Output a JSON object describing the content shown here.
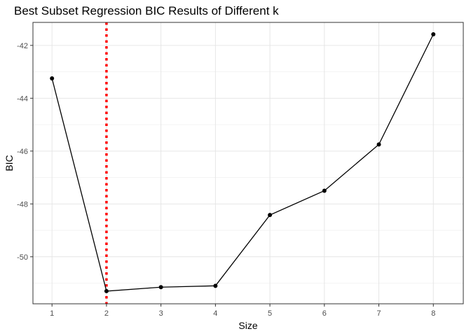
{
  "chart_data": {
    "type": "line",
    "title": "Best Subset Regression BIC Results of Different k",
    "xlabel": "Size",
    "ylabel": "BIC",
    "x": [
      1,
      2,
      3,
      4,
      5,
      6,
      7,
      8
    ],
    "series": [
      {
        "values": [
          -43.25,
          -51.3,
          -51.15,
          -51.1,
          -48.42,
          -47.5,
          -45.75,
          -41.58
        ]
      }
    ],
    "xticks": [
      1,
      2,
      3,
      4,
      5,
      6,
      7,
      8
    ],
    "xtick_labels": [
      "1",
      "2",
      "3",
      "4",
      "5",
      "6",
      "7",
      "8"
    ],
    "yticks": [
      -50,
      -48,
      -46,
      -44,
      -42
    ],
    "ytick_labels": [
      "-50",
      "-48",
      "-46",
      "-44",
      "-42"
    ],
    "xlim": [
      0.65,
      8.55
    ],
    "ylim": [
      -51.78,
      -41.13
    ],
    "grid": true,
    "vline": {
      "x": 2,
      "color": "#ff0000",
      "style": "dotted"
    },
    "line_color": "#000000",
    "point_color": "#000000"
  }
}
